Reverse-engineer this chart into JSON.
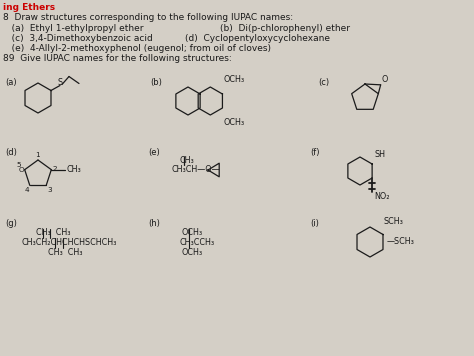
{
  "bg_color": "#d4cfc6",
  "text_color": "#1a1a1a",
  "red_color": "#cc0000",
  "fig_w": 4.74,
  "fig_h": 3.56,
  "dpi": 100,
  "header": "ing Ethers",
  "line1": "8  Draw structures corresponding to the following IUPAC names:",
  "line2a": "   (a)  Ethyl 1-ethylpropyl ether",
  "line2b": "(b)  Di(p-chlorophenyl) ether",
  "line3a": "   (c)  3,4-Dimethoxybenzoic acid",
  "line3b": "(d)  Cyclopentyloxycyclohexane",
  "line4": "   (e)  4-Allyl-2-methoxyphenol (eugenol; from oil of cloves)",
  "line5": "89  Give IUPAC names for the following structures:",
  "fs_main": 6.5,
  "fs_label": 6.0,
  "fs_struct": 5.8,
  "fs_small": 5.2
}
